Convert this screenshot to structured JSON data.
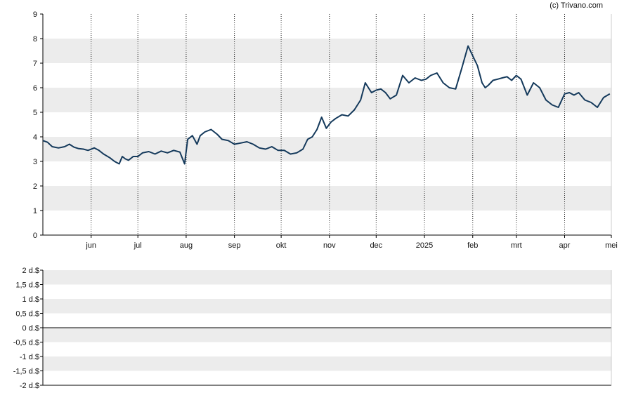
{
  "credit": "(c) Trivano.com",
  "colors": {
    "line": "#14395b",
    "band": "#ececec",
    "grid": "#222222",
    "axis": "#000000"
  },
  "chart_data": [
    {
      "type": "line",
      "title": "",
      "xlabel": "",
      "ylabel": "",
      "ylim": [
        0,
        9
      ],
      "yticks": [
        0,
        1,
        2,
        3,
        4,
        5,
        6,
        7,
        8,
        9
      ],
      "x_range": [
        "2024-05-01",
        "2025-05-01"
      ],
      "month_ticks": [
        {
          "label": "jun",
          "date": "2024-06-01"
        },
        {
          "label": "jul",
          "date": "2024-07-01"
        },
        {
          "label": "aug",
          "date": "2024-08-01"
        },
        {
          "label": "sep",
          "date": "2024-09-01"
        },
        {
          "label": "okt",
          "date": "2024-10-01"
        },
        {
          "label": "nov",
          "date": "2024-11-01"
        },
        {
          "label": "dec",
          "date": "2024-12-01"
        },
        {
          "label": "2025",
          "date": "2025-01-01"
        },
        {
          "label": "feb",
          "date": "2025-02-01"
        },
        {
          "label": "mrt",
          "date": "2025-03-01"
        },
        {
          "label": "apr",
          "date": "2025-04-01"
        },
        {
          "label": "mei",
          "date": "2025-05-01"
        }
      ],
      "grid": "vertical dotted at month ticks, alternating horizontal bands",
      "series": [
        {
          "x": [
            "2024-05-01",
            "2024-05-04",
            "2024-05-07",
            "2024-05-11",
            "2024-05-15",
            "2024-05-18",
            "2024-05-21",
            "2024-05-24",
            "2024-05-27",
            "2024-05-30",
            "2024-06-03",
            "2024-06-06",
            "2024-06-09",
            "2024-06-13",
            "2024-06-16",
            "2024-06-19",
            "2024-06-21",
            "2024-06-23",
            "2024-06-25",
            "2024-06-28",
            "2024-07-01",
            "2024-07-04",
            "2024-07-08",
            "2024-07-12",
            "2024-07-16",
            "2024-07-20",
            "2024-07-24",
            "2024-07-28",
            "2024-07-31",
            "2024-08-02",
            "2024-08-05",
            "2024-08-08",
            "2024-08-10",
            "2024-08-13",
            "2024-08-17",
            "2024-08-21",
            "2024-08-24",
            "2024-08-28",
            "2024-09-01",
            "2024-09-05",
            "2024-09-09",
            "2024-09-13",
            "2024-09-17",
            "2024-09-21",
            "2024-09-25",
            "2024-09-29",
            "2024-10-03",
            "2024-10-07",
            "2024-10-11",
            "2024-10-15",
            "2024-10-18",
            "2024-10-21",
            "2024-10-24",
            "2024-10-27",
            "2024-10-30",
            "2024-11-02",
            "2024-11-05",
            "2024-11-09",
            "2024-11-13",
            "2024-11-17",
            "2024-11-21",
            "2024-11-24",
            "2024-11-28",
            "2024-12-01",
            "2024-12-04",
            "2024-12-07",
            "2024-12-10",
            "2024-12-14",
            "2024-12-18",
            "2024-12-22",
            "2024-12-26",
            "2024-12-30",
            "2025-01-02",
            "2025-01-05",
            "2025-01-09",
            "2025-01-13",
            "2025-01-17",
            "2025-01-21",
            "2025-01-25",
            "2025-01-29",
            "2025-02-01",
            "2025-02-04",
            "2025-02-07",
            "2025-02-09",
            "2025-02-11",
            "2025-02-14",
            "2025-02-17",
            "2025-02-20",
            "2025-02-23",
            "2025-02-26",
            "2025-03-01",
            "2025-03-04",
            "2025-03-08",
            "2025-03-12",
            "2025-03-16",
            "2025-03-20",
            "2025-03-24",
            "2025-03-28",
            "2025-04-01",
            "2025-04-04",
            "2025-04-07",
            "2025-04-10",
            "2025-04-14",
            "2025-04-18",
            "2025-04-22",
            "2025-04-26",
            "2025-04-30"
          ],
          "values": [
            3.85,
            3.78,
            3.6,
            3.55,
            3.6,
            3.7,
            3.58,
            3.52,
            3.5,
            3.45,
            3.55,
            3.45,
            3.3,
            3.15,
            3.0,
            2.9,
            3.2,
            3.1,
            3.05,
            3.2,
            3.2,
            3.35,
            3.4,
            3.3,
            3.42,
            3.35,
            3.45,
            3.38,
            2.9,
            3.9,
            4.05,
            3.7,
            4.05,
            4.2,
            4.3,
            4.1,
            3.9,
            3.85,
            3.7,
            3.75,
            3.8,
            3.7,
            3.55,
            3.5,
            3.6,
            3.45,
            3.45,
            3.3,
            3.35,
            3.5,
            3.9,
            4.0,
            4.3,
            4.8,
            4.35,
            4.6,
            4.75,
            4.9,
            4.85,
            5.1,
            5.5,
            6.2,
            5.8,
            5.9,
            5.95,
            5.8,
            5.55,
            5.7,
            6.5,
            6.2,
            6.4,
            6.3,
            6.35,
            6.5,
            6.6,
            6.2,
            6.0,
            5.95,
            6.8,
            7.7,
            7.3,
            6.9,
            6.2,
            6.0,
            6.1,
            6.3,
            6.35,
            6.4,
            6.45,
            6.3,
            6.5,
            6.35,
            5.7,
            6.2,
            6.0,
            5.5,
            5.3,
            5.2,
            5.75,
            5.8,
            5.7,
            5.8,
            5.5,
            5.4,
            5.2,
            5.6,
            5.75
          ]
        }
      ]
    },
    {
      "type": "bar",
      "title": "",
      "ylim": [
        -2,
        2
      ],
      "ytick_labels": [
        "2 d.$",
        "1,5 d.$",
        "1 d.$",
        "0,5 d.$",
        "0 d.$",
        "-0,5 d.$",
        "-1 d.$",
        "-1,5 d.$",
        "-2 d.$"
      ],
      "yticks": [
        2,
        1.5,
        1,
        0.5,
        0,
        -0.5,
        -1,
        -1.5,
        -2
      ],
      "values": []
    }
  ]
}
